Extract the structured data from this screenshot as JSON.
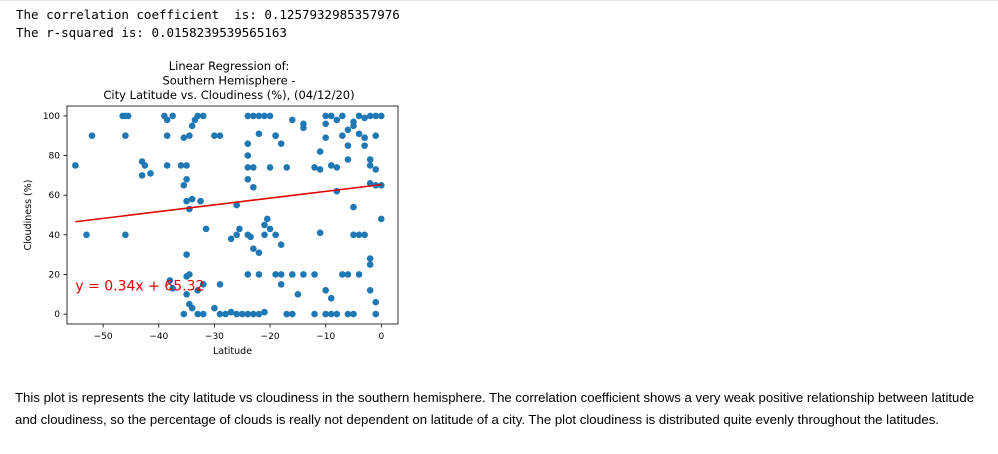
{
  "stdout": {
    "line1": "The correlation coefficient  is: 0.1257932985357976",
    "line2": "The r-squared is: 0.0158239539565163"
  },
  "chart_data": {
    "type": "scatter",
    "title_lines": [
      "Linear Regression of:",
      "Southern Hemisphere -",
      "City Latitude vs. Cloudiness (%), (04/12/20)"
    ],
    "xlabel": "Latitude",
    "ylabel": "Cloudiness (%)",
    "xlim": [
      -56.5,
      3
    ],
    "ylim": [
      -5,
      105
    ],
    "xticks": [
      -50,
      -40,
      -30,
      -20,
      -10,
      0
    ],
    "yticks": [
      0,
      20,
      40,
      60,
      80,
      100
    ],
    "point_color": "#1f77b4",
    "line_color": "#e00000",
    "regression": {
      "slope": 0.34,
      "intercept": 65.32,
      "x_range": [
        -55,
        0
      ]
    },
    "equation_label": "y = 0.34x + 65.32",
    "equation_anchor": {
      "x": -55,
      "y": 12
    },
    "points": [
      [
        -55,
        75
      ],
      [
        -53,
        40
      ],
      [
        -52,
        90
      ],
      [
        -46.5,
        100
      ],
      [
        -46,
        100
      ],
      [
        -45.5,
        100
      ],
      [
        -46,
        90
      ],
      [
        -46,
        40
      ],
      [
        -43,
        77
      ],
      [
        -42.5,
        75
      ],
      [
        -43,
        70
      ],
      [
        -41.5,
        71
      ],
      [
        -39,
        100
      ],
      [
        -38.5,
        98
      ],
      [
        -37.5,
        100
      ],
      [
        -38.5,
        90
      ],
      [
        -38.5,
        75
      ],
      [
        -36,
        75
      ],
      [
        -35.5,
        89
      ],
      [
        -34.5,
        90
      ],
      [
        -35,
        75
      ],
      [
        -35,
        68
      ],
      [
        -35.5,
        65
      ],
      [
        -35,
        57
      ],
      [
        -34.5,
        53
      ],
      [
        -34,
        58
      ],
      [
        -33.5,
        98
      ],
      [
        -33,
        100
      ],
      [
        -34,
        95
      ],
      [
        -32,
        100
      ],
      [
        -32.5,
        57
      ],
      [
        -31.5,
        43
      ],
      [
        -30,
        90
      ],
      [
        -29,
        90
      ],
      [
        -38,
        17
      ],
      [
        -37.5,
        13
      ],
      [
        -35,
        19
      ],
      [
        -34.5,
        20
      ],
      [
        -35,
        10
      ],
      [
        -34.5,
        5
      ],
      [
        -34,
        3
      ],
      [
        -35.5,
        0
      ],
      [
        -33,
        0
      ],
      [
        -32,
        0
      ],
      [
        -30,
        3
      ],
      [
        -29,
        0
      ],
      [
        -28,
        0
      ],
      [
        -27,
        1
      ],
      [
        -26,
        0
      ],
      [
        -25,
        0
      ],
      [
        -24,
        0
      ],
      [
        -23,
        0
      ],
      [
        -22,
        0
      ],
      [
        -21,
        1
      ],
      [
        -33,
        12
      ],
      [
        -32,
        15
      ],
      [
        -29,
        15
      ],
      [
        -35,
        30
      ],
      [
        -27,
        38
      ],
      [
        -26,
        40
      ],
      [
        -26,
        55
      ],
      [
        -25.5,
        43
      ],
      [
        -24,
        40
      ],
      [
        -23.5,
        39
      ],
      [
        -23,
        33
      ],
      [
        -22,
        31
      ],
      [
        -21,
        45
      ],
      [
        -21,
        40
      ],
      [
        -20.5,
        48
      ],
      [
        -20,
        43
      ],
      [
        -19,
        40
      ],
      [
        -18,
        35
      ],
      [
        -24,
        100
      ],
      [
        -23,
        100
      ],
      [
        -22,
        100
      ],
      [
        -21,
        100
      ],
      [
        -20,
        100
      ],
      [
        -19,
        90
      ],
      [
        -22,
        91
      ],
      [
        -24,
        86
      ],
      [
        -24,
        80
      ],
      [
        -24,
        74
      ],
      [
        -23,
        74
      ],
      [
        -24,
        68
      ],
      [
        -23,
        64
      ],
      [
        -20,
        74
      ],
      [
        -19,
        90
      ],
      [
        -18,
        86
      ],
      [
        -17,
        74
      ],
      [
        -16,
        98
      ],
      [
        -14,
        96
      ],
      [
        -14,
        94
      ],
      [
        -12,
        74
      ],
      [
        -11,
        73
      ],
      [
        -10,
        100
      ],
      [
        -10,
        96
      ],
      [
        -9,
        100
      ],
      [
        -8,
        98
      ],
      [
        -7,
        100
      ],
      [
        -6,
        93
      ],
      [
        -5,
        95
      ],
      [
        -4,
        100
      ],
      [
        -3,
        99
      ],
      [
        -2,
        100
      ],
      [
        -1,
        100
      ],
      [
        0,
        100
      ],
      [
        -11,
        82
      ],
      [
        -10,
        89
      ],
      [
        -9,
        75
      ],
      [
        -8,
        74
      ],
      [
        -7,
        90
      ],
      [
        -6,
        85
      ],
      [
        -6,
        78
      ],
      [
        -5,
        97
      ],
      [
        -4,
        91
      ],
      [
        -3,
        89
      ],
      [
        -3,
        85
      ],
      [
        -2,
        78
      ],
      [
        -2,
        75
      ],
      [
        -1,
        73
      ],
      [
        -1,
        90
      ],
      [
        -2,
        66
      ],
      [
        -1,
        65
      ],
      [
        0,
        65
      ],
      [
        -8,
        62
      ],
      [
        -5,
        54
      ],
      [
        -5,
        40
      ],
      [
        -4,
        40
      ],
      [
        -3,
        40
      ],
      [
        0,
        48
      ],
      [
        -11,
        41
      ],
      [
        -24,
        20
      ],
      [
        -22,
        20
      ],
      [
        -19,
        20
      ],
      [
        -18,
        20
      ],
      [
        -18,
        15
      ],
      [
        -16,
        20
      ],
      [
        -15,
        10
      ],
      [
        -14,
        20
      ],
      [
        -12,
        20
      ],
      [
        -10,
        12
      ],
      [
        -9,
        8
      ],
      [
        -7,
        20
      ],
      [
        -6,
        20
      ],
      [
        -4,
        20
      ],
      [
        -2,
        28
      ],
      [
        -2,
        25
      ],
      [
        -2,
        12
      ],
      [
        -1,
        6
      ],
      [
        -17,
        0
      ],
      [
        -16,
        0
      ],
      [
        -12,
        0
      ],
      [
        -10,
        0
      ],
      [
        -9,
        0
      ],
      [
        -8,
        0
      ],
      [
        -6,
        0
      ],
      [
        -5,
        0
      ],
      [
        -1,
        0
      ]
    ]
  },
  "markdown": {
    "paragraph": "This plot is represents the city latitude vs cloudiness in the southern hemisphere. The correlation coefficient shows a very weak positive relationship between latitude and cloudiness, so the percentage of clouds is really not dependent on latitude of a city. The plot cloudiness is distributed quite evenly throughout the latitudes."
  }
}
